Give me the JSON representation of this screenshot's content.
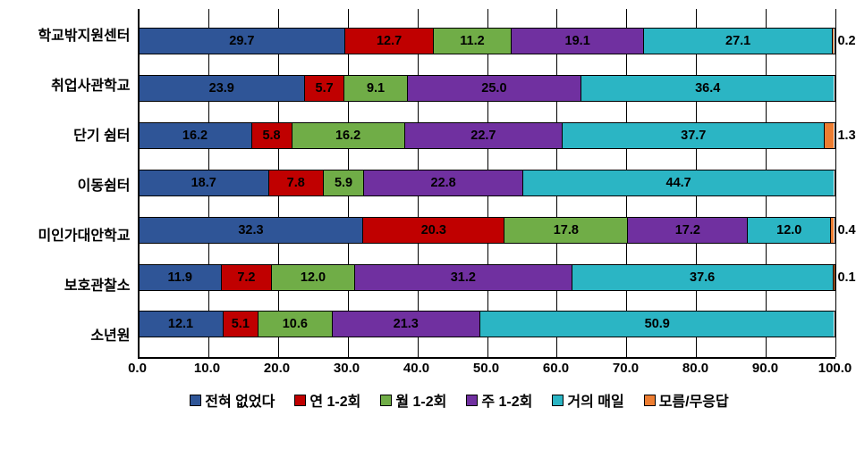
{
  "chart": {
    "type": "stacked_horizontal_bar",
    "xlim": [
      0,
      100
    ],
    "xtick_step": 10,
    "xticks": [
      "0.0",
      "10.0",
      "20.0",
      "30.0",
      "40.0",
      "50.0",
      "60.0",
      "70.0",
      "80.0",
      "90.0",
      "100.0"
    ],
    "background_color": "#ffffff",
    "grid_color": "#000000",
    "series": [
      {
        "key": "s1",
        "label": "전혀 없었다",
        "color": "#2f5597"
      },
      {
        "key": "s2",
        "label": "연 1-2회",
        "color": "#c00000"
      },
      {
        "key": "s3",
        "label": "월 1-2회",
        "color": "#70ad47"
      },
      {
        "key": "s4",
        "label": "주 1-2회",
        "color": "#7030a0"
      },
      {
        "key": "s5",
        "label": "거의 매일",
        "color": "#2bb5c4"
      },
      {
        "key": "s6",
        "label": "모름/무응답",
        "color": "#ed7d31"
      }
    ],
    "categories": [
      {
        "label": "학교밖지원센터",
        "values": [
          29.7,
          12.7,
          11.2,
          19.1,
          27.1,
          0.2
        ]
      },
      {
        "label": "취업사관학교",
        "values": [
          23.9,
          5.7,
          9.1,
          25.0,
          36.4,
          0.0
        ]
      },
      {
        "label": "단기 쉼터",
        "values": [
          16.2,
          5.8,
          16.2,
          22.7,
          37.7,
          1.3
        ]
      },
      {
        "label": "이동쉼터",
        "values": [
          18.7,
          7.8,
          5.9,
          22.8,
          44.7,
          0.0
        ]
      },
      {
        "label": "미인가대안학교",
        "values": [
          32.3,
          20.3,
          17.8,
          17.2,
          12.0,
          0.4
        ]
      },
      {
        "label": "보호관찰소",
        "values": [
          11.9,
          7.2,
          12.0,
          31.2,
          37.6,
          0.1
        ]
      },
      {
        "label": "소년원",
        "values": [
          12.1,
          5.1,
          10.6,
          21.3,
          50.9,
          0.0
        ]
      }
    ],
    "min_label_width_pct": 3.0
  }
}
